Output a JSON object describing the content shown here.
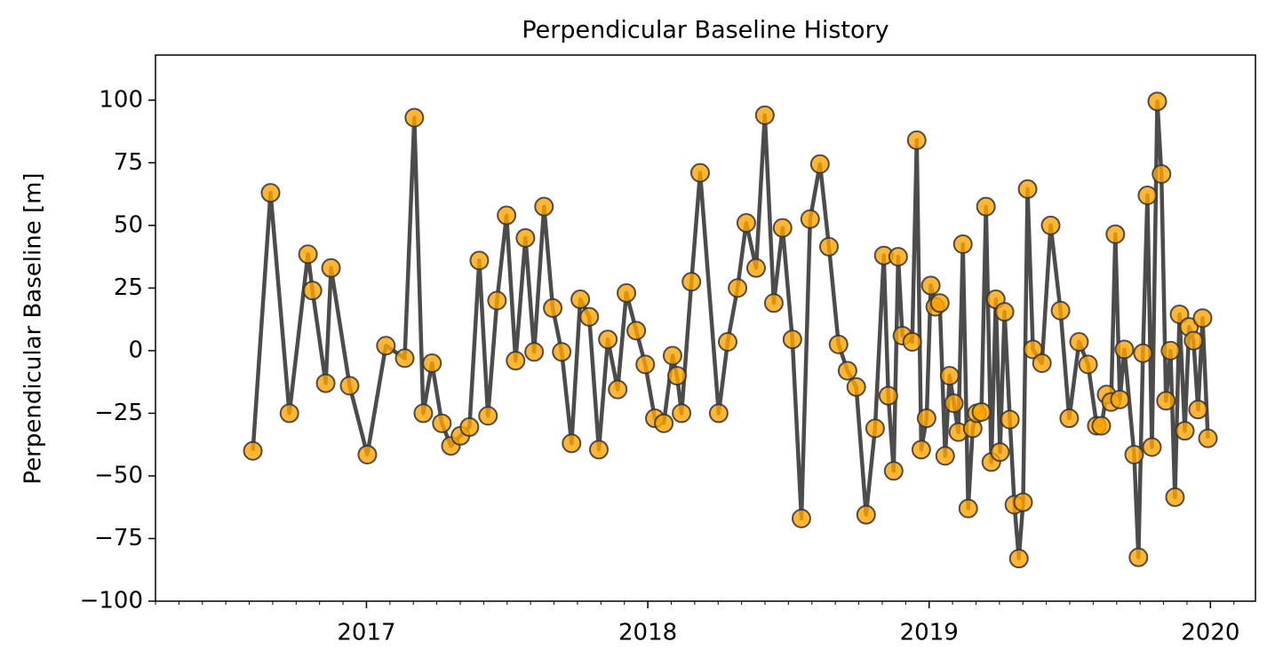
{
  "chart_data": {
    "type": "line",
    "title": "Perpendicular Baseline History",
    "ylabel": "Perpendicular Baseline [m]",
    "xlim": [
      2016.25,
      2020.16
    ],
    "xticks": [
      2017,
      2018,
      2019,
      2020
    ],
    "ylim": [
      -100,
      118
    ],
    "yticks": [
      {
        "value": -100,
        "label": "−100"
      },
      {
        "value": -75,
        "label": "−75"
      },
      {
        "value": -50,
        "label": "−50"
      },
      {
        "value": -25,
        "label": "−25"
      },
      0,
      25,
      50,
      75,
      100
    ],
    "series": [
      {
        "color": "#333333",
        "marker_color": "#ffa500",
        "x": [
          2016.596,
          2016.659,
          2016.726,
          2016.792,
          2016.808,
          2016.855,
          2016.874,
          2016.94,
          2017.003,
          2017.069,
          2017.136,
          2017.17,
          2017.202,
          2017.233,
          2017.268,
          2017.3,
          2017.334,
          2017.366,
          2017.401,
          2017.432,
          2017.464,
          2017.498,
          2017.53,
          2017.565,
          2017.596,
          2017.631,
          2017.662,
          2017.694,
          2017.729,
          2017.76,
          2017.792,
          2017.826,
          2017.858,
          2017.893,
          2017.924,
          2017.959,
          2017.991,
          2018.025,
          2018.057,
          2018.088,
          2018.104,
          2018.12,
          2018.155,
          2018.186,
          2018.252,
          2018.284,
          2018.319,
          2018.35,
          2018.385,
          2018.416,
          2018.448,
          2018.479,
          2018.514,
          2018.546,
          2018.577,
          2018.612,
          2018.644,
          2018.678,
          2018.71,
          2018.741,
          2018.776,
          2018.808,
          2018.839,
          2018.855,
          2018.874,
          2018.89,
          2018.905,
          2018.94,
          2018.956,
          2018.972,
          2018.991,
          2019.006,
          2019.022,
          2019.038,
          2019.057,
          2019.073,
          2019.088,
          2019.104,
          2019.12,
          2019.139,
          2019.155,
          2019.17,
          2019.186,
          2019.202,
          2019.221,
          2019.237,
          2019.252,
          2019.268,
          2019.287,
          2019.303,
          2019.319,
          2019.334,
          2019.35,
          2019.369,
          2019.401,
          2019.432,
          2019.467,
          2019.498,
          2019.533,
          2019.565,
          2019.596,
          2019.612,
          2019.631,
          2019.647,
          2019.662,
          2019.678,
          2019.694,
          2019.729,
          2019.744,
          2019.76,
          2019.776,
          2019.792,
          2019.811,
          2019.826,
          2019.842,
          2019.858,
          2019.874,
          2019.89,
          2019.909,
          2019.924,
          2019.94,
          2019.956,
          2019.972,
          2019.991
        ],
        "values": [
          -40,
          63,
          -25,
          38.5,
          24,
          -13,
          33,
          -14,
          -41.5,
          2,
          -3,
          93,
          -25,
          -5,
          -29,
          -38,
          -34,
          -30.5,
          36,
          -26,
          20,
          54,
          -4,
          45,
          -0.5,
          57.5,
          17,
          -0.5,
          -37,
          20.5,
          13.5,
          -39.5,
          4.5,
          -15.5,
          23,
          8,
          -5.5,
          -27,
          -29,
          -2,
          -10,
          -25,
          27.5,
          71,
          -25,
          3.5,
          25,
          51,
          33,
          94,
          19,
          49,
          4.5,
          -67,
          52.5,
          74.5,
          41.5,
          2.5,
          -8,
          -14.5,
          -65.5,
          -31,
          38,
          -18,
          -48,
          37.5,
          6,
          3.5,
          84,
          -39.5,
          -27,
          26,
          17.5,
          19,
          -42,
          -10,
          -21,
          -32.5,
          42.5,
          -63,
          -31,
          -25,
          -24.5,
          57.5,
          -44.5,
          20.5,
          -40.5,
          15.5,
          -27.5,
          -61.5,
          -83,
          -60.5,
          64.5,
          0.5,
          -5,
          50,
          16,
          -27,
          3.5,
          -5.5,
          -30,
          -30,
          -17.5,
          -20.5,
          46.5,
          -19.5,
          0.5,
          -41.5,
          -82.5,
          -1,
          62,
          -38.5,
          99.5,
          70.5,
          -20,
          0,
          -58.5,
          14.5,
          -32,
          9.5,
          4,
          -23.5,
          13,
          -35
        ]
      }
    ]
  }
}
